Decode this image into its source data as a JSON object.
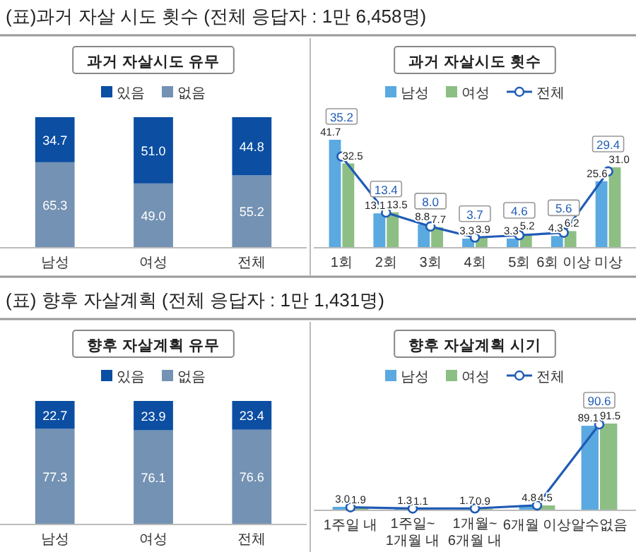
{
  "chart_data": [
    {
      "type": "bar",
      "title": "과거 자살시도 유무",
      "annotations": [
        "(표)과거 자살 시도 횟수 (전체 응답자 : 1만 6,458명)"
      ],
      "categories": [
        "남성",
        "여성",
        "전체"
      ],
      "stacked": true,
      "legend": "top",
      "series": [
        {
          "name": "없음",
          "color": "#7492b3",
          "values": [
            65.3,
            49.0,
            55.2
          ],
          "value_labels": [
            "65.3",
            "49.0",
            "55.2"
          ]
        },
        {
          "name": "있음",
          "color": "#0b4ea2",
          "values": [
            34.7,
            51.0,
            44.8
          ],
          "value_labels": [
            "34.7",
            "51.0",
            "44.8"
          ]
        }
      ]
    },
    {
      "type": "bar",
      "title": "과거 자살시도 횟수",
      "categories": [
        "1회",
        "2회",
        "3회",
        "4회",
        "5회",
        "6회 이상",
        "미상"
      ],
      "legend": "top",
      "series": [
        {
          "name": "남성",
          "type": "bar",
          "color": "#5aa9e0",
          "values": [
            41.7,
            13.1,
            8.8,
            3.3,
            3.3,
            4.3,
            25.6
          ],
          "value_labels": [
            "41.7",
            "13.1",
            "8.8",
            "3.3",
            "3.3",
            "4.3",
            "25.6"
          ]
        },
        {
          "name": "여성",
          "type": "bar",
          "color": "#8dbf85",
          "values": [
            32.5,
            13.5,
            7.7,
            3.9,
            5.2,
            6.2,
            31.0
          ],
          "value_labels": [
            "32.5",
            "13.5",
            "7.7",
            "3.9",
            "5.2",
            "6.2",
            "31.0"
          ]
        },
        {
          "name": "전체",
          "type": "line",
          "color": "#1f5bb5",
          "marker": "circle",
          "values": [
            35.2,
            13.4,
            8.0,
            3.7,
            4.6,
            5.6,
            29.4
          ],
          "value_labels": [
            "35.2",
            "13.4",
            "8.0",
            "3.7",
            "4.6",
            "5.6",
            "29.4"
          ]
        }
      ]
    },
    {
      "type": "bar",
      "title": "향후 자살계획 유무",
      "annotations": [
        "(표) 향후 자살계획 (전체 응답자 : 1만 1,431명)"
      ],
      "categories": [
        "남성",
        "여성",
        "전체"
      ],
      "stacked": true,
      "legend": "top",
      "series": [
        {
          "name": "없음",
          "color": "#7492b3",
          "values": [
            77.3,
            76.1,
            76.6
          ],
          "value_labels": [
            "77.3",
            "76.1",
            "76.6"
          ]
        },
        {
          "name": "있음",
          "color": "#0b4ea2",
          "values": [
            22.7,
            23.9,
            23.4
          ],
          "value_labels": [
            "22.7",
            "23.9",
            "23.4"
          ]
        }
      ]
    },
    {
      "type": "bar",
      "title": "향후 자살계획 시기",
      "categories": [
        "1주일 내",
        "1주일~1개월 내",
        "1개월~6개월 내",
        "6개월 이상",
        "알수없음"
      ],
      "legend": "top",
      "series": [
        {
          "name": "남성",
          "type": "bar",
          "color": "#5aa9e0",
          "values": [
            3.0,
            1.3,
            1.7,
            4.8,
            89.1
          ],
          "value_labels": [
            "3.0",
            "1.3",
            "1.7",
            "4.8",
            "89.1"
          ]
        },
        {
          "name": "여성",
          "type": "bar",
          "color": "#8dbf85",
          "values": [
            1.9,
            1.1,
            0.9,
            4.5,
            91.5
          ],
          "value_labels": [
            "1.9",
            "1.1",
            "0.9",
            "4.5",
            "91.5"
          ]
        },
        {
          "name": "전체",
          "type": "line",
          "color": "#1f5bb5",
          "marker": "circle",
          "values": [
            2.5,
            1.2,
            1.3,
            4.6,
            90.6
          ],
          "value_labels": [
            null,
            null,
            null,
            null,
            "90.6"
          ]
        }
      ]
    }
  ]
}
